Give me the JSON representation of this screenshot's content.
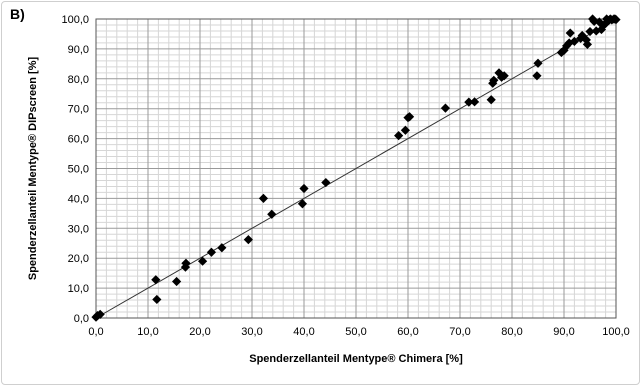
{
  "panel_label": "B)",
  "chart_data": {
    "type": "scatter",
    "xlabel": "Spenderzellanteil Mentype® Chimera [%]",
    "ylabel": "Spenderzellanteil Mentype® DIPscreen [%]",
    "xlim": [
      0,
      100
    ],
    "ylim": [
      0,
      100
    ],
    "x_ticks": [
      "0,0",
      "10,0",
      "20,0",
      "30,0",
      "40,0",
      "50,0",
      "60,0",
      "70,0",
      "80,0",
      "90,0",
      "100,0"
    ],
    "y_ticks": [
      "0,0",
      "10,0",
      "20,0",
      "30,0",
      "40,0",
      "50,0",
      "60,0",
      "70,0",
      "80,0",
      "90,0",
      "100,0"
    ],
    "grid": true,
    "minor_grid_step": 2,
    "trendline": {
      "x": [
        0,
        100
      ],
      "y": [
        0,
        100
      ]
    },
    "marker": "diamond",
    "marker_color": "#000000",
    "points": [
      [
        0.0,
        0.3
      ],
      [
        0.3,
        0.8
      ],
      [
        0.8,
        1.2
      ],
      [
        11.5,
        12.8
      ],
      [
        11.7,
        6.2
      ],
      [
        15.5,
        12.2
      ],
      [
        17.2,
        17.0
      ],
      [
        17.3,
        18.3
      ],
      [
        20.5,
        19.0
      ],
      [
        22.2,
        22.0
      ],
      [
        24.2,
        23.5
      ],
      [
        29.3,
        26.2
      ],
      [
        32.2,
        40.0
      ],
      [
        33.8,
        34.7
      ],
      [
        39.7,
        38.2
      ],
      [
        40.0,
        43.3
      ],
      [
        44.2,
        45.3
      ],
      [
        58.2,
        61.0
      ],
      [
        59.5,
        62.8
      ],
      [
        60.0,
        67.0
      ],
      [
        60.3,
        67.3
      ],
      [
        67.2,
        70.2
      ],
      [
        71.7,
        72.2
      ],
      [
        72.8,
        72.3
      ],
      [
        76.0,
        73.0
      ],
      [
        76.3,
        78.5
      ],
      [
        76.5,
        79.5
      ],
      [
        77.5,
        82.0
      ],
      [
        78.0,
        80.5
      ],
      [
        78.5,
        81.0
      ],
      [
        84.8,
        81.0
      ],
      [
        85.0,
        85.2
      ],
      [
        89.5,
        88.8
      ],
      [
        90.0,
        89.5
      ],
      [
        90.5,
        91.0
      ],
      [
        91.0,
        92.0
      ],
      [
        91.2,
        95.3
      ],
      [
        92.0,
        92.5
      ],
      [
        93.2,
        93.5
      ],
      [
        93.5,
        94.5
      ],
      [
        94.3,
        93.0
      ],
      [
        94.5,
        91.5
      ],
      [
        95.0,
        95.8
      ],
      [
        95.5,
        100.0
      ],
      [
        95.8,
        99.2
      ],
      [
        96.2,
        96.0
      ],
      [
        96.8,
        99.0
      ],
      [
        97.2,
        96.5
      ],
      [
        97.5,
        97.8
      ],
      [
        98.0,
        98.5
      ],
      [
        98.2,
        100.0
      ],
      [
        98.6,
        99.5
      ],
      [
        98.9,
        100.0
      ],
      [
        99.2,
        99.7
      ],
      [
        99.6,
        100.0
      ],
      [
        99.8,
        100.0
      ],
      [
        100.0,
        99.8
      ]
    ]
  }
}
